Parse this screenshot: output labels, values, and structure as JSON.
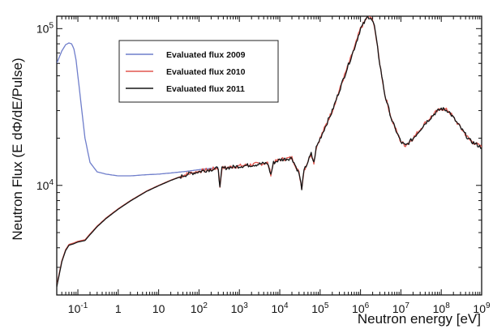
{
  "chart_data": {
    "type": "line",
    "title": "",
    "xlabel": "Neutron energy [eV]",
    "ylabel": "Neutron Flux (E dΦ/dE/Pulse)",
    "xscale": "log",
    "yscale": "log",
    "xlim": [
      0.03,
      1000000000
    ],
    "ylim": [
      2000,
      120000
    ],
    "x_ticks": [
      {
        "value": 0.1,
        "base": "10",
        "exp": "-1"
      },
      {
        "value": 1,
        "text": "1"
      },
      {
        "value": 10,
        "text": "10"
      },
      {
        "value": 100,
        "base": "10",
        "exp": "2"
      },
      {
        "value": 1000,
        "base": "10",
        "exp": "3"
      },
      {
        "value": 10000,
        "base": "10",
        "exp": "4"
      },
      {
        "value": 100000,
        "base": "10",
        "exp": "5"
      },
      {
        "value": 1000000,
        "base": "10",
        "exp": "6"
      },
      {
        "value": 10000000,
        "base": "10",
        "exp": "7"
      },
      {
        "value": 100000000,
        "base": "10",
        "exp": "8"
      },
      {
        "value": 1000000000,
        "base": "10",
        "exp": "9"
      }
    ],
    "y_ticks": [
      {
        "value": 10000,
        "base": "10",
        "exp": "4"
      },
      {
        "value": 100000,
        "base": "10",
        "exp": "5"
      }
    ],
    "grid": false,
    "legend_position": "top-left",
    "series": [
      {
        "name": "Evaluated flux 2009",
        "color": "#6f7ecb",
        "points": [
          [
            0.03,
            60000
          ],
          [
            0.04,
            72000
          ],
          [
            0.05,
            79000
          ],
          [
            0.06,
            81000
          ],
          [
            0.07,
            80000
          ],
          [
            0.08,
            74000
          ],
          [
            0.09,
            63000
          ],
          [
            0.1,
            50000
          ],
          [
            0.12,
            33000
          ],
          [
            0.15,
            20000
          ],
          [
            0.2,
            14000
          ],
          [
            0.3,
            12200
          ],
          [
            0.5,
            11800
          ],
          [
            1,
            11500
          ],
          [
            2,
            11500
          ],
          [
            5,
            11700
          ],
          [
            10,
            11800
          ],
          [
            20,
            12000
          ],
          [
            50,
            12300
          ],
          [
            100,
            12600
          ],
          [
            300,
            13000
          ]
        ]
      },
      {
        "name": "Evaluated flux 2010",
        "color": "#e2564e",
        "points": [
          [
            0.03,
            2300
          ],
          [
            0.04,
            3300
          ],
          [
            0.05,
            3900
          ],
          [
            0.06,
            4200
          ],
          [
            0.08,
            4300
          ],
          [
            0.1,
            4400
          ],
          [
            0.15,
            4500
          ],
          [
            0.2,
            4900
          ],
          [
            0.3,
            5500
          ],
          [
            0.5,
            6200
          ],
          [
            1,
            7100
          ],
          [
            2,
            8000
          ],
          [
            5,
            9200
          ],
          [
            10,
            10000
          ],
          [
            20,
            10800
          ],
          [
            50,
            11800
          ],
          [
            100,
            12300
          ],
          [
            200,
            12700
          ],
          [
            300,
            12900
          ],
          [
            330,
            9800
          ],
          [
            370,
            12900
          ],
          [
            1000,
            13300
          ],
          [
            5000,
            13900
          ],
          [
            6000,
            11800
          ],
          [
            7000,
            14000
          ],
          [
            10000,
            14600
          ],
          [
            20000,
            15000
          ],
          [
            30000,
            12000
          ],
          [
            35000,
            9700
          ],
          [
            40000,
            12500
          ],
          [
            60000,
            16000
          ],
          [
            70000,
            14000
          ],
          [
            80000,
            17500
          ],
          [
            100000,
            20000
          ],
          [
            200000,
            30000
          ],
          [
            400000,
            50000
          ],
          [
            700000,
            75000
          ],
          [
            1000000,
            100000
          ],
          [
            1300000,
            112000
          ],
          [
            1500000,
            120000
          ],
          [
            1800000,
            118000
          ],
          [
            2200000,
            105000
          ],
          [
            3000000,
            60000
          ],
          [
            4000000,
            38000
          ],
          [
            6000000,
            26000
          ],
          [
            10000000,
            19000
          ],
          [
            13000000,
            18000
          ],
          [
            20000000,
            20000
          ],
          [
            40000000,
            25000
          ],
          [
            70000000,
            29000
          ],
          [
            100000000,
            31000
          ],
          [
            150000000,
            30000
          ],
          [
            250000000,
            25000
          ],
          [
            500000000,
            19500
          ],
          [
            1000000000,
            17500
          ]
        ]
      },
      {
        "name": "Evaluated flux 2011",
        "color": "#161616",
        "points": [
          [
            0.03,
            2250
          ],
          [
            0.04,
            3250
          ],
          [
            0.05,
            3850
          ],
          [
            0.06,
            4150
          ],
          [
            0.08,
            4250
          ],
          [
            0.1,
            4350
          ],
          [
            0.15,
            4450
          ],
          [
            0.2,
            4850
          ],
          [
            0.3,
            5450
          ],
          [
            0.5,
            6150
          ],
          [
            1,
            7050
          ],
          [
            2,
            7950
          ],
          [
            5,
            9150
          ],
          [
            10,
            9950
          ],
          [
            20,
            10750
          ],
          [
            50,
            11750
          ],
          [
            100,
            12250
          ],
          [
            200,
            12650
          ],
          [
            300,
            12850
          ],
          [
            330,
            9600
          ],
          [
            370,
            12850
          ],
          [
            1000,
            13250
          ],
          [
            5000,
            13850
          ],
          [
            6000,
            11700
          ],
          [
            7000,
            13950
          ],
          [
            10000,
            14550
          ],
          [
            20000,
            14950
          ],
          [
            30000,
            11900
          ],
          [
            35000,
            9600
          ],
          [
            40000,
            12400
          ],
          [
            60000,
            15900
          ],
          [
            70000,
            13900
          ],
          [
            80000,
            17400
          ],
          [
            100000,
            19900
          ],
          [
            200000,
            29900
          ],
          [
            400000,
            49800
          ],
          [
            700000,
            74800
          ],
          [
            1000000,
            99500
          ],
          [
            1300000,
            111500
          ],
          [
            1500000,
            119500
          ],
          [
            1800000,
            117500
          ],
          [
            2200000,
            104500
          ],
          [
            3000000,
            59800
          ],
          [
            4000000,
            37900
          ],
          [
            6000000,
            25900
          ],
          [
            10000000,
            18900
          ],
          [
            13000000,
            17900
          ],
          [
            20000000,
            19900
          ],
          [
            40000000,
            24900
          ],
          [
            70000000,
            28900
          ],
          [
            100000000,
            30900
          ],
          [
            150000000,
            29900
          ],
          [
            250000000,
            24900
          ],
          [
            500000000,
            19400
          ],
          [
            1000000000,
            17400
          ]
        ]
      }
    ]
  }
}
